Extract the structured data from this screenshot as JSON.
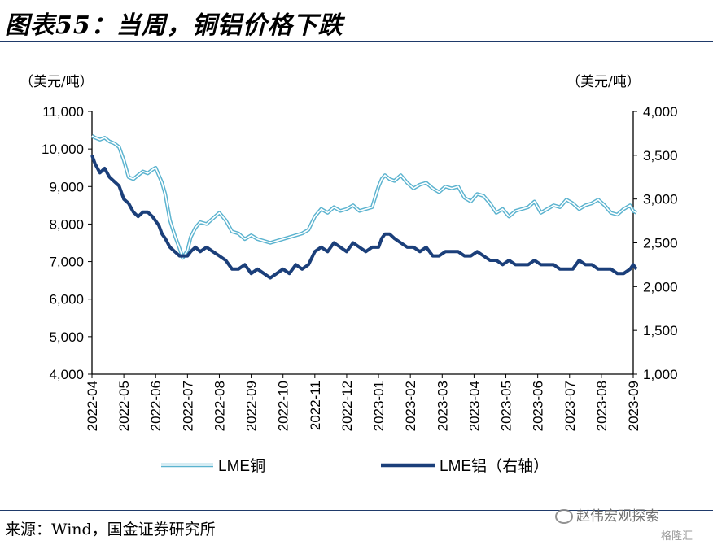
{
  "title": "图表55：当周，铜铝价格下跌",
  "source": "来源：Wind，国金证券研究所",
  "watermark": "赵伟宏观探索",
  "watermark2": "格隆汇",
  "colors": {
    "copper": "#5bb3cf",
    "aluminum": "#1b3f7a",
    "axis": "#000000",
    "rule": "#1f3a6a"
  },
  "chart_data": {
    "type": "line",
    "left_axis": {
      "unit": "（美元/吨）",
      "min": 4000,
      "max": 11000,
      "ticks": [
        "4,000",
        "5,000",
        "6,000",
        "7,000",
        "8,000",
        "9,000",
        "10,000",
        "11,000"
      ]
    },
    "right_axis": {
      "unit": "（美元/吨）",
      "min": 1000,
      "max": 4000,
      "ticks": [
        "1,000",
        "1,500",
        "2,000",
        "2,500",
        "3,000",
        "3,500",
        "4,000"
      ]
    },
    "x_labels": [
      "2022-04",
      "2022-05",
      "2022-06",
      "2022-07",
      "2022-08",
      "2022-09",
      "2022-10",
      "2022-11",
      "2022-12",
      "2023-01",
      "2023-02",
      "2023-03",
      "2023-04",
      "2023-05",
      "2023-06",
      "2023-07",
      "2023-08",
      "2023-09"
    ],
    "series": [
      {
        "name": "LME铜",
        "axis": "left",
        "style": "double",
        "x": [
          0,
          0.1,
          0.25,
          0.4,
          0.55,
          0.7,
          0.85,
          1.0,
          1.15,
          1.3,
          1.45,
          1.6,
          1.75,
          1.9,
          2.0,
          2.1,
          2.2,
          2.3,
          2.45,
          2.6,
          2.75,
          2.85,
          3.0,
          3.1,
          3.25,
          3.4,
          3.6,
          3.8,
          4.0,
          4.2,
          4.4,
          4.6,
          4.8,
          5.0,
          5.2,
          5.4,
          5.6,
          5.8,
          6.0,
          6.2,
          6.4,
          6.6,
          6.8,
          7.0,
          7.2,
          7.4,
          7.6,
          7.8,
          8.0,
          8.2,
          8.4,
          8.6,
          8.8,
          9.0,
          9.1,
          9.2,
          9.35,
          9.5,
          9.7,
          9.9,
          10.1,
          10.3,
          10.5,
          10.7,
          10.9,
          11.1,
          11.3,
          11.5,
          11.7,
          11.9,
          12.1,
          12.3,
          12.5,
          12.7,
          12.9,
          13.1,
          13.3,
          13.5,
          13.7,
          13.9,
          14.1,
          14.3,
          14.5,
          14.7,
          14.9,
          15.1,
          15.3,
          15.5,
          15.7,
          15.9,
          16.1,
          16.3,
          16.5,
          16.7,
          16.9,
          17.0,
          17.1
        ],
        "values": [
          10350,
          10300,
          10250,
          10300,
          10200,
          10150,
          10050,
          9700,
          9250,
          9200,
          9300,
          9400,
          9350,
          9450,
          9500,
          9300,
          9100,
          8800,
          8100,
          7700,
          7350,
          7100,
          7300,
          7650,
          7900,
          8050,
          8000,
          8150,
          8300,
          8100,
          7800,
          7750,
          7600,
          7700,
          7600,
          7550,
          7500,
          7550,
          7600,
          7650,
          7700,
          7750,
          7850,
          8200,
          8400,
          8300,
          8450,
          8350,
          8400,
          8500,
          8350,
          8400,
          8450,
          9000,
          9200,
          9300,
          9200,
          9150,
          9300,
          9100,
          8950,
          9050,
          9100,
          8950,
          8850,
          9000,
          8950,
          9000,
          8700,
          8600,
          8800,
          8750,
          8550,
          8300,
          8400,
          8200,
          8350,
          8400,
          8450,
          8600,
          8300,
          8400,
          8500,
          8450,
          8650,
          8550,
          8400,
          8500,
          8550,
          8650,
          8500,
          8300,
          8250,
          8400,
          8500,
          8350,
          8300
        ]
      },
      {
        "name": "LME铝（右轴）",
        "axis": "right",
        "style": "thick",
        "x": [
          0,
          0.1,
          0.25,
          0.4,
          0.55,
          0.7,
          0.85,
          1.0,
          1.15,
          1.3,
          1.45,
          1.6,
          1.75,
          1.9,
          2.0,
          2.1,
          2.2,
          2.3,
          2.45,
          2.6,
          2.75,
          2.85,
          3.0,
          3.1,
          3.25,
          3.4,
          3.6,
          3.8,
          4.0,
          4.2,
          4.4,
          4.6,
          4.8,
          5.0,
          5.2,
          5.4,
          5.6,
          5.8,
          6.0,
          6.2,
          6.4,
          6.6,
          6.8,
          7.0,
          7.2,
          7.4,
          7.6,
          7.8,
          8.0,
          8.2,
          8.4,
          8.6,
          8.8,
          9.0,
          9.1,
          9.2,
          9.35,
          9.5,
          9.7,
          9.9,
          10.1,
          10.3,
          10.5,
          10.7,
          10.9,
          11.1,
          11.3,
          11.5,
          11.7,
          11.9,
          12.1,
          12.3,
          12.5,
          12.7,
          12.9,
          13.1,
          13.3,
          13.5,
          13.7,
          13.9,
          14.1,
          14.3,
          14.5,
          14.7,
          14.9,
          15.1,
          15.3,
          15.5,
          15.7,
          15.9,
          16.1,
          16.3,
          16.5,
          16.7,
          16.9,
          17.0,
          17.1
        ],
        "values": [
          3500,
          3400,
          3300,
          3350,
          3250,
          3200,
          3150,
          3000,
          2950,
          2850,
          2800,
          2850,
          2850,
          2800,
          2750,
          2700,
          2600,
          2550,
          2450,
          2400,
          2350,
          2350,
          2350,
          2400,
          2450,
          2400,
          2450,
          2400,
          2350,
          2300,
          2200,
          2200,
          2250,
          2150,
          2200,
          2150,
          2100,
          2150,
          2200,
          2150,
          2250,
          2200,
          2250,
          2400,
          2450,
          2400,
          2500,
          2450,
          2400,
          2500,
          2450,
          2400,
          2450,
          2450,
          2550,
          2600,
          2600,
          2550,
          2500,
          2450,
          2450,
          2400,
          2450,
          2350,
          2350,
          2400,
          2400,
          2400,
          2350,
          2350,
          2400,
          2350,
          2300,
          2300,
          2250,
          2300,
          2250,
          2250,
          2250,
          2300,
          2250,
          2250,
          2250,
          2200,
          2200,
          2200,
          2300,
          2250,
          2250,
          2200,
          2200,
          2200,
          2150,
          2150,
          2200,
          2250,
          2200
        ]
      }
    ]
  }
}
